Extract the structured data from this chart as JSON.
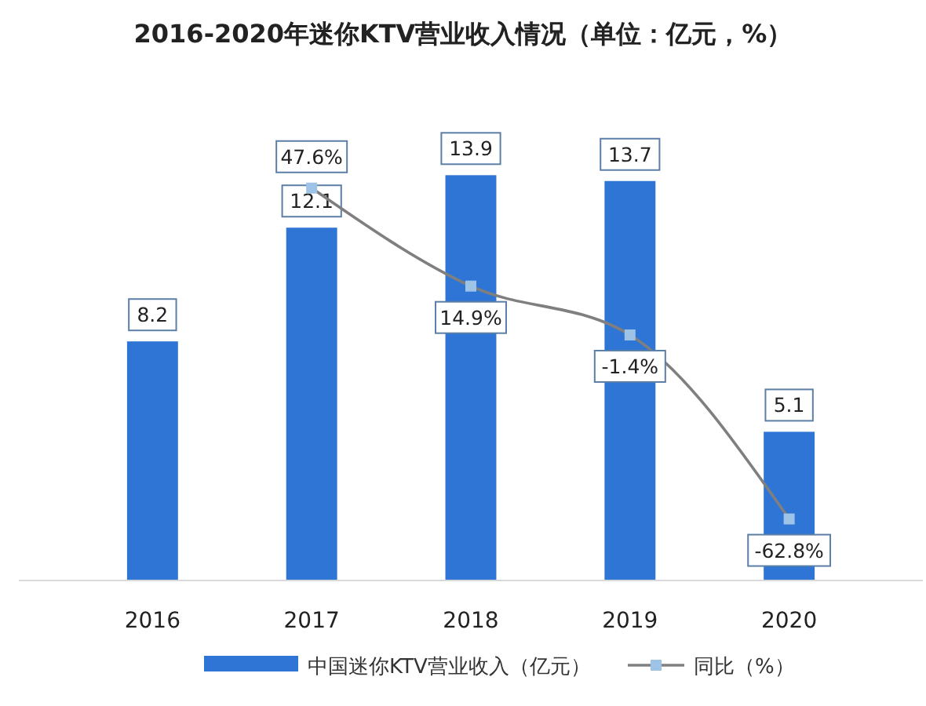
{
  "chart_data": {
    "type": "bar",
    "title": "2016-2020年迷你KTV营业收入情况（单位：亿元，%）",
    "categories": [
      "2016",
      "2017",
      "2018",
      "2019",
      "2020"
    ],
    "series": [
      {
        "name": "中国迷你KTV营业收入（亿元）",
        "color": "#2e75d6",
        "values": [
          8.2,
          12.1,
          13.9,
          13.7,
          5.1
        ]
      },
      {
        "name": "同比（%）",
        "type": "line",
        "axis": "y2",
        "color": "#7f7f7f",
        "values": [
          null,
          47.6,
          14.9,
          -1.4,
          -62.8
        ],
        "value_labels": [
          null,
          "47.6%",
          "14.9%",
          "-1.4%",
          "-62.8%"
        ]
      }
    ],
    "data_labels": true,
    "marker": "square",
    "legend": "bottom",
    "tick_labels": "x"
  }
}
